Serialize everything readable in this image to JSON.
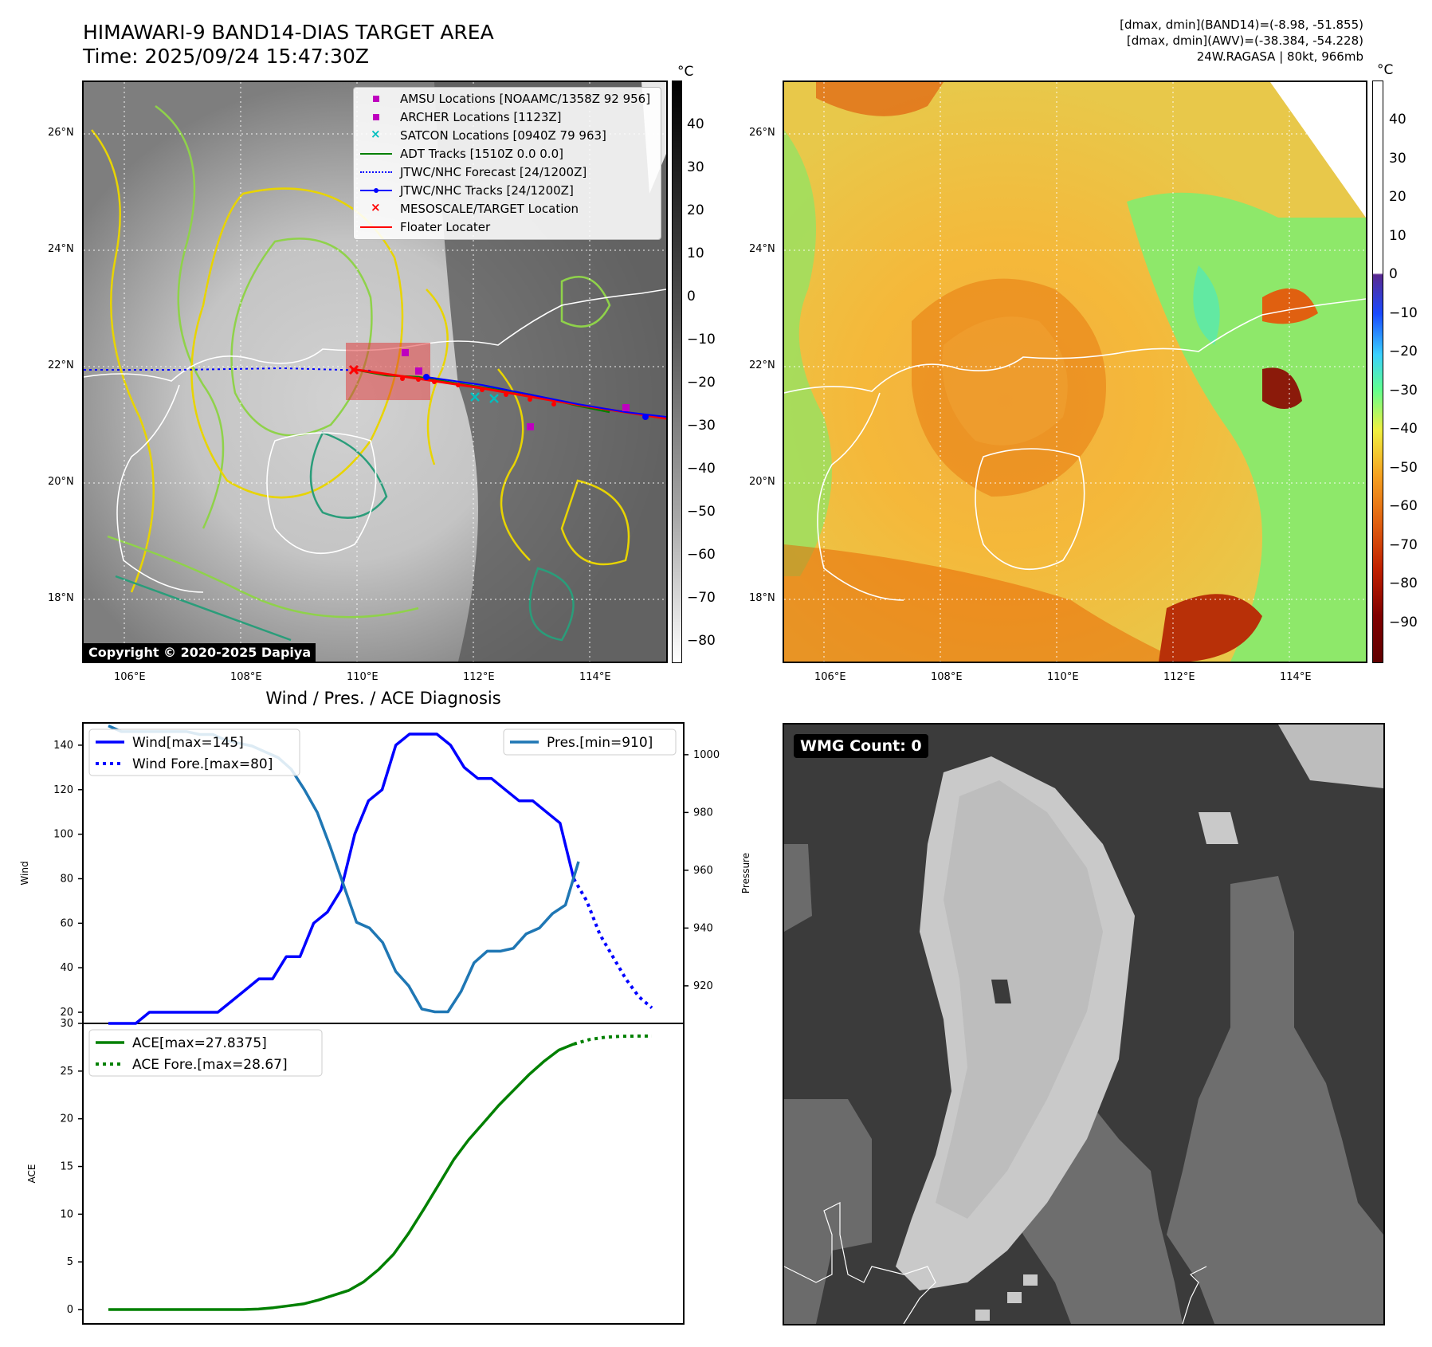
{
  "header": {
    "title_line1": "HIMAWARI-9 BAND14-DIAS TARGET AREA",
    "title_line2": "Time: 2025/09/24 15:47:30Z",
    "info_line1": "[dmax, dmin](BAND14)=(-8.98, -51.855)",
    "info_line2": "[dmax, dmin](AWV)=(-38.384, -54.228)",
    "info_line3": "24W.RAGASA | 80kt, 966mb"
  },
  "map": {
    "lat_labels": [
      "26°N",
      "24°N",
      "22°N",
      "20°N",
      "18°N"
    ],
    "lon_labels": [
      "106°E",
      "108°E",
      "110°E",
      "112°E",
      "114°E"
    ],
    "copyright": "Copyright © 2020-2025 Dapiya"
  },
  "legend": [
    {
      "label": "AMSU Locations [NOAAMC/1358Z 92 956]",
      "symbol": "square",
      "color": "#bf00bf"
    },
    {
      "label": "ARCHER Locations [1123Z]",
      "symbol": "square",
      "color": "#bf00bf"
    },
    {
      "label": "SATCON Locations [0940Z 79 963]",
      "symbol": "x",
      "color": "#00bfbf"
    },
    {
      "label": "ADT Tracks [1510Z 0.0 0.0]",
      "symbol": "line",
      "color": "#008000"
    },
    {
      "label": "JTWC/NHC Forecast [24/1200Z]",
      "symbol": "dotted",
      "color": "#0000ff"
    },
    {
      "label": "JTWC/NHC Tracks [24/1200Z]",
      "symbol": "line-dot",
      "color": "#0000ff"
    },
    {
      "label": "MESOSCALE/TARGET Location",
      "symbol": "x",
      "color": "#ff0000"
    },
    {
      "label": "Floater Locater",
      "symbol": "line",
      "color": "#ff0000"
    }
  ],
  "colorbar_gray": {
    "unit": "°C",
    "ticks": [
      "40",
      "30",
      "20",
      "10",
      "0",
      "−10",
      "−20",
      "−30",
      "−40",
      "−50",
      "−60",
      "−70",
      "−80"
    ]
  },
  "colorbar_color": {
    "unit": "°C",
    "ticks": [
      "40",
      "30",
      "20",
      "10",
      "0",
      "−10",
      "−20",
      "−30",
      "−40",
      "−50",
      "−60",
      "−70",
      "−80",
      "−90"
    ]
  },
  "diag": {
    "title": "Wind / Pres. / ACE Diagnosis",
    "wind_ylabel": "Wind",
    "pres_ylabel": "Pressure",
    "ace_ylabel": "ACE",
    "wind_ticks": [
      "140",
      "120",
      "100",
      "80",
      "60",
      "40",
      "20"
    ],
    "pres_ticks": [
      "1000",
      "980",
      "960",
      "940",
      "920"
    ],
    "ace_ticks": [
      "30",
      "25",
      "20",
      "15",
      "10",
      "5",
      "0"
    ],
    "legend_wind": "Wind[max=145]",
    "legend_wind_fore": "Wind Fore.[max=80]",
    "legend_pres": "Pres.[min=910]",
    "legend_ace": "ACE[max=27.8375]",
    "legend_ace_fore": "ACE Fore.[max=28.67]"
  },
  "wmg": {
    "label": "WMG Count: 0"
  },
  "chart_data": [
    {
      "type": "line",
      "title": "Wind / Pres. / ACE Diagnosis",
      "ylabel": "Wind",
      "ylim": [
        15,
        150
      ],
      "series": [
        {
          "name": "Wind[max=145]",
          "color": "#0000ff",
          "style": "solid",
          "values": [
            15,
            15,
            15,
            20,
            20,
            20,
            20,
            20,
            20,
            25,
            30,
            35,
            35,
            45,
            45,
            60,
            65,
            75,
            100,
            115,
            120,
            140,
            145,
            145,
            145,
            140,
            130,
            125,
            125,
            120,
            115,
            115,
            110,
            105,
            80
          ]
        },
        {
          "name": "Wind Fore.[max=80]",
          "color": "#0000ff",
          "style": "dotted",
          "values": [
            80,
            70,
            55,
            45,
            35,
            27,
            22
          ]
        }
      ]
    },
    {
      "type": "line",
      "ylabel": "Pressure",
      "ylim": [
        907,
        1011
      ],
      "series": [
        {
          "name": "Pres.[min=910]",
          "color": "#1f77b4",
          "style": "solid",
          "values": [
            1010,
            1008,
            1008,
            1008,
            1008,
            1008,
            1008,
            1007,
            1007,
            1005,
            1004,
            1003,
            1001,
            999,
            995,
            988,
            980,
            968,
            955,
            942,
            940,
            935,
            925,
            920,
            912,
            911,
            911,
            918,
            928,
            932,
            932,
            933,
            938,
            940,
            945,
            948,
            963
          ]
        }
      ]
    },
    {
      "type": "line",
      "ylabel": "ACE",
      "ylim": [
        -1.5,
        30
      ],
      "series": [
        {
          "name": "ACE[max=27.8375]",
          "color": "#008000",
          "style": "solid",
          "values": [
            0,
            0,
            0,
            0,
            0,
            0,
            0,
            0,
            0,
            0,
            0.05,
            0.2,
            0.4,
            0.6,
            1.0,
            1.5,
            2.0,
            2.9,
            4.2,
            5.8,
            8.0,
            10.5,
            13.1,
            15.7,
            17.8,
            19.6,
            21.4,
            23.0,
            24.6,
            26.0,
            27.2,
            27.8375
          ]
        },
        {
          "name": "ACE Fore.[max=28.67]",
          "color": "#008000",
          "style": "dotted",
          "values": [
            27.8375,
            28.3,
            28.55,
            28.65,
            28.67,
            28.67
          ]
        }
      ]
    }
  ]
}
